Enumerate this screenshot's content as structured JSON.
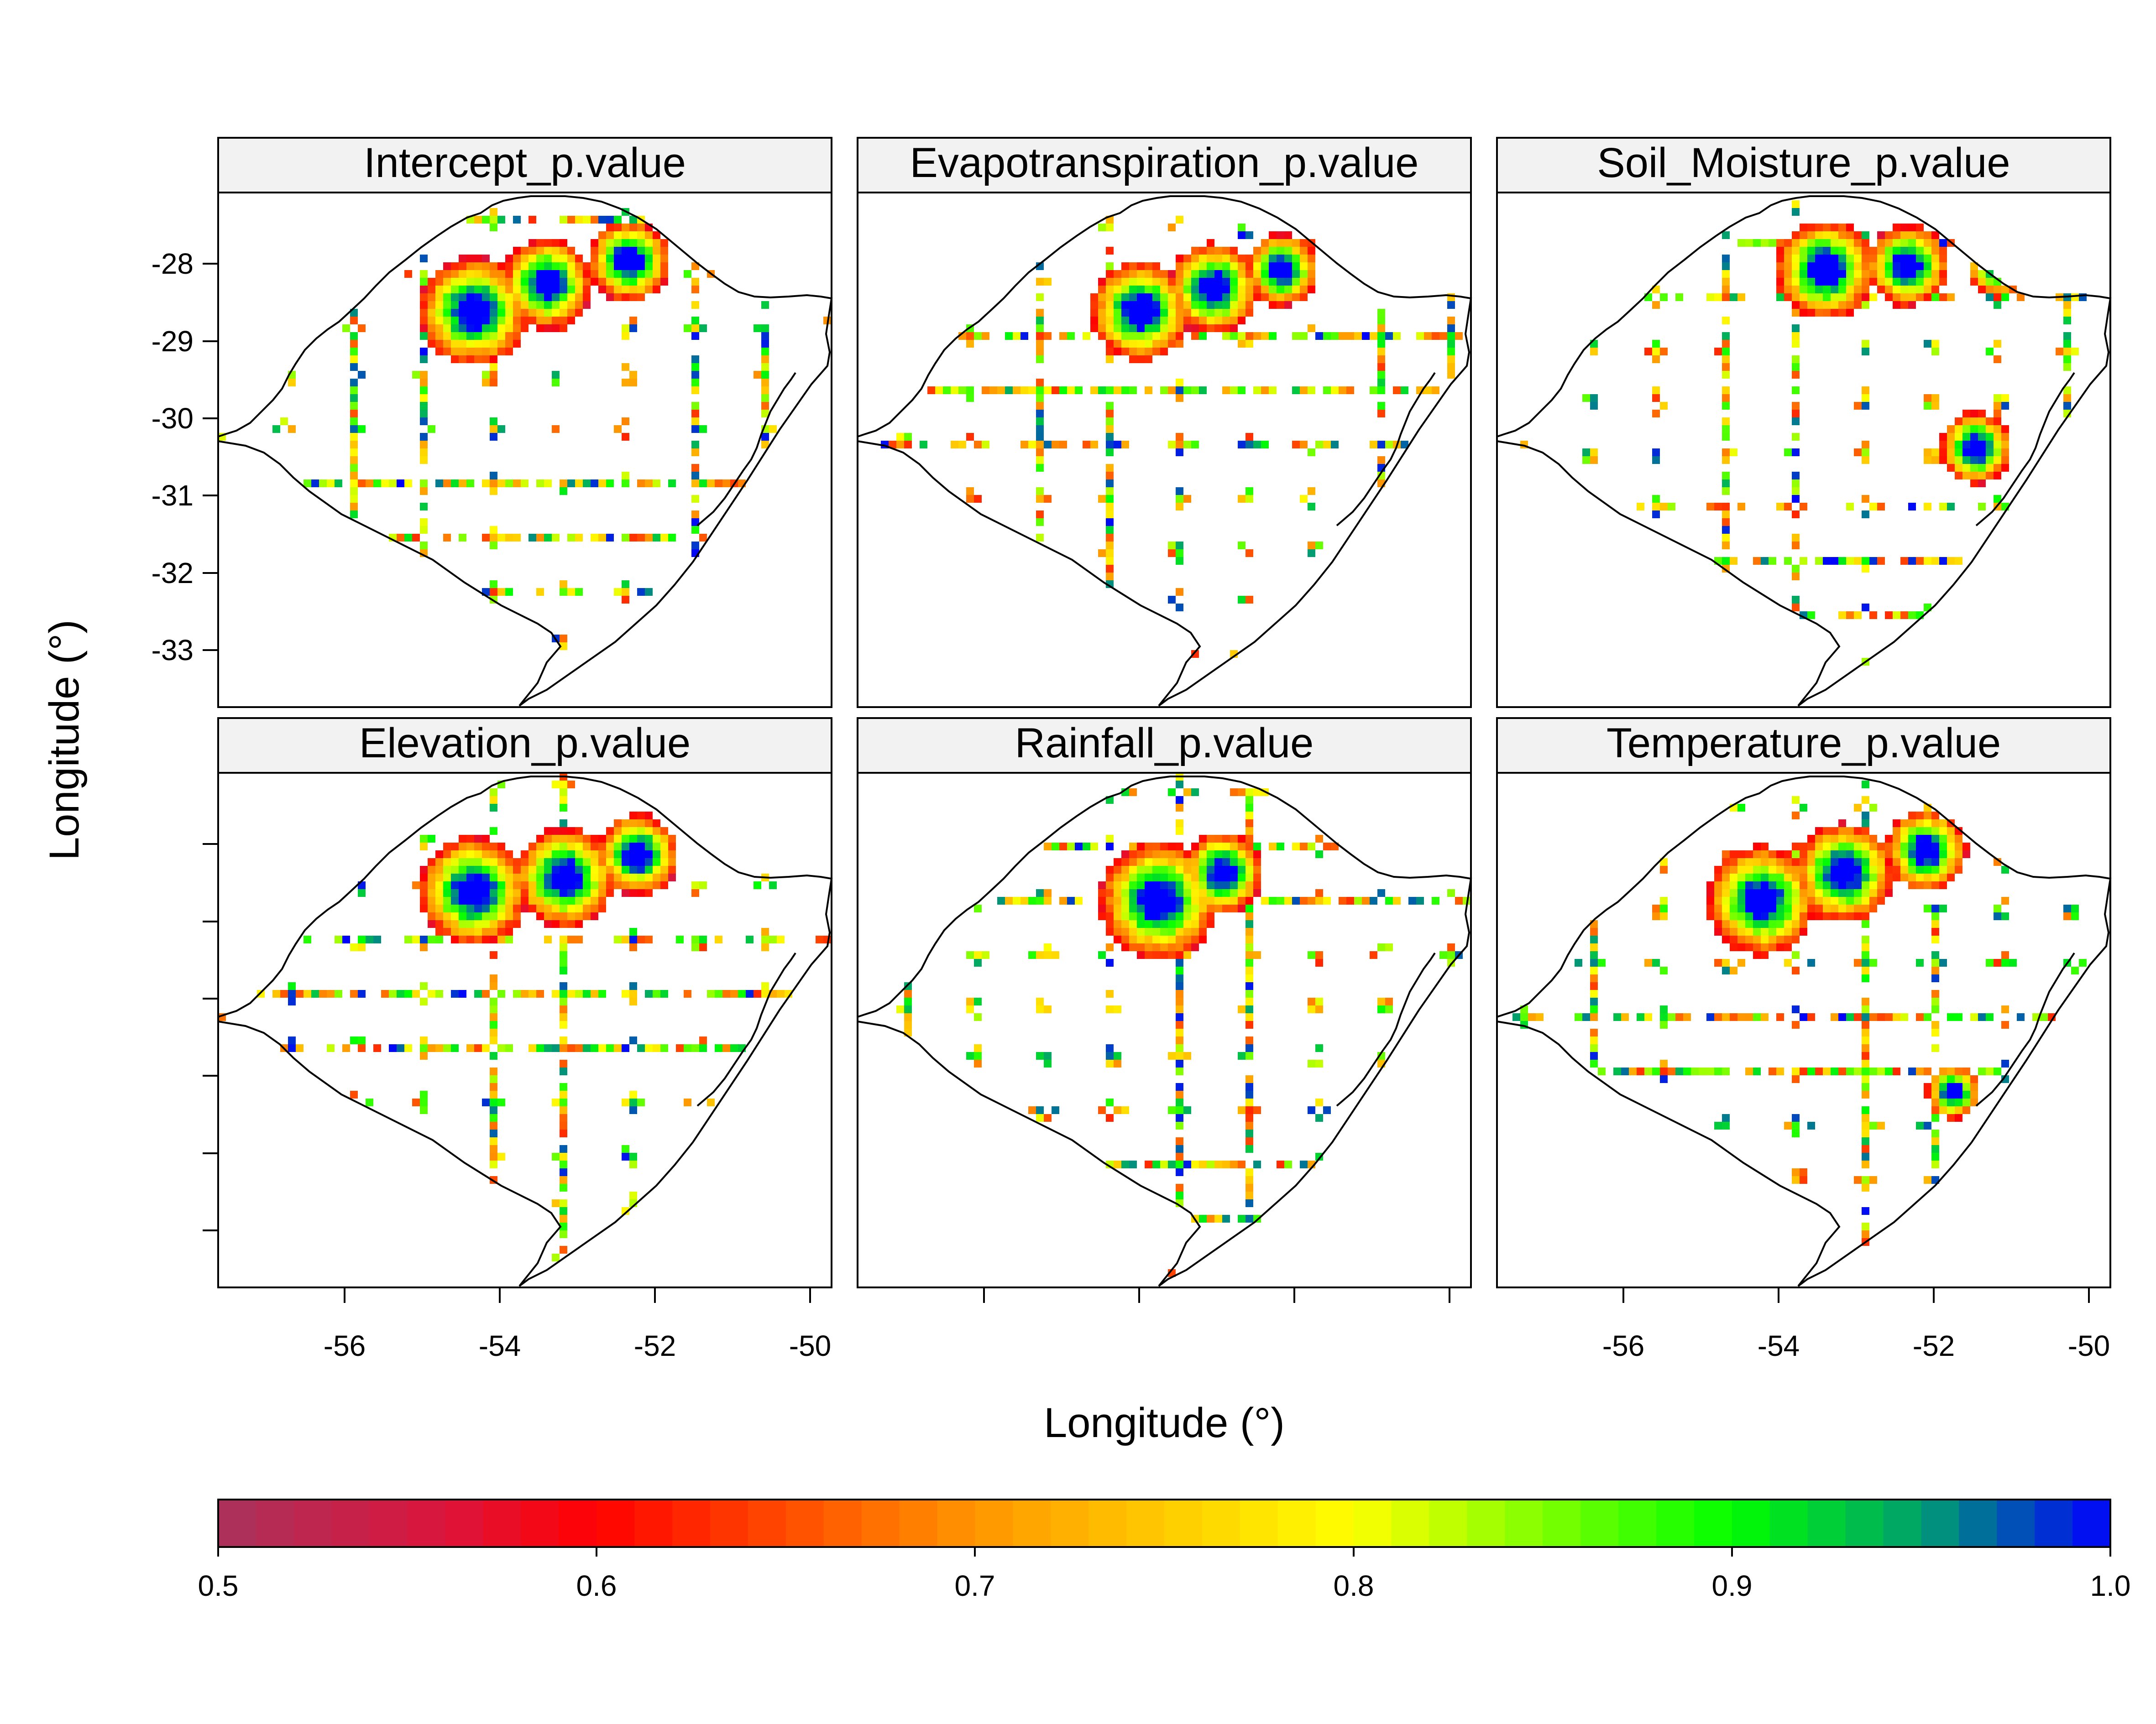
{
  "figure": {
    "ylabel": "Longitude (°)",
    "xlabel": "Longitude (°)"
  },
  "axes": {
    "x_ticks": [
      "-56",
      "-54",
      "-52",
      "-50"
    ],
    "y_ticks": [
      "-28",
      "-29",
      "-30",
      "-31",
      "-32",
      "-33"
    ]
  },
  "panels": [
    {
      "title": "Intercept_p.value"
    },
    {
      "title": "Evapotranspiration_p.value"
    },
    {
      "title": "Soil_Moisture_p.value"
    },
    {
      "title": "Elevation_p.value"
    },
    {
      "title": "Rainfall_p.value"
    },
    {
      "title": "Temperature_p.value"
    }
  ],
  "colorbar": {
    "min": 0.5,
    "max": 1.0,
    "tick_labels": [
      "0.5",
      "0.6",
      "0.7",
      "0.8",
      "0.9",
      "1.0"
    ],
    "colors": [
      "#a8325c",
      "#ff0000",
      "#ff8000",
      "#ffff00",
      "#00ff00",
      "#00cc44",
      "#0000ff"
    ]
  },
  "colors": {
    "strip_background": "#f2f2f2",
    "frame": "#000000"
  },
  "chart_data": {
    "type": "heatmap",
    "x_range": [
      -57.6,
      -49.7
    ],
    "y_range": [
      -33.75,
      -27.1
    ],
    "x_ticks": [
      -56,
      -54,
      -52,
      -50
    ],
    "y_ticks": [
      -28,
      -29,
      -30,
      -31,
      -32,
      -33
    ],
    "value_range": [
      0.5,
      1.0
    ],
    "panels": [
      "Intercept_p.value",
      "Evapotranspiration_p.value",
      "Soil_Moisture_p.value",
      "Elevation_p.value",
      "Rainfall_p.value",
      "Temperature_p.value"
    ]
  }
}
